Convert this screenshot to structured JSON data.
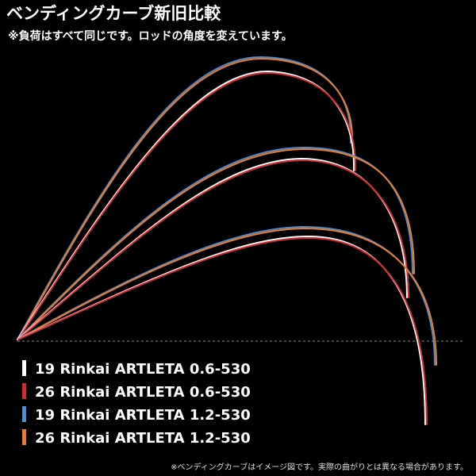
{
  "header": {
    "title": "ベンディングカーブ新旧比較",
    "subtitle": "※負荷はすべて同じです。ロッドの角度を変えています。"
  },
  "legend": [
    {
      "label": "19 Rinkai ARTLETA 0.6-530",
      "color": "#ffffff"
    },
    {
      "label": "26 Rinkai ARTLETA 0.6-530",
      "color": "#d42a30"
    },
    {
      "label": "19 Rinkai ARTLETA 1.2-530",
      "color": "#4a8fd6"
    },
    {
      "label": "26 Rinkai ARTLETA 1.2-530",
      "color": "#ea7c2c"
    }
  ],
  "footnote": "※ベンディングカーブはイメージ図です。実際の曲がりとは異なる場合があります。"
}
